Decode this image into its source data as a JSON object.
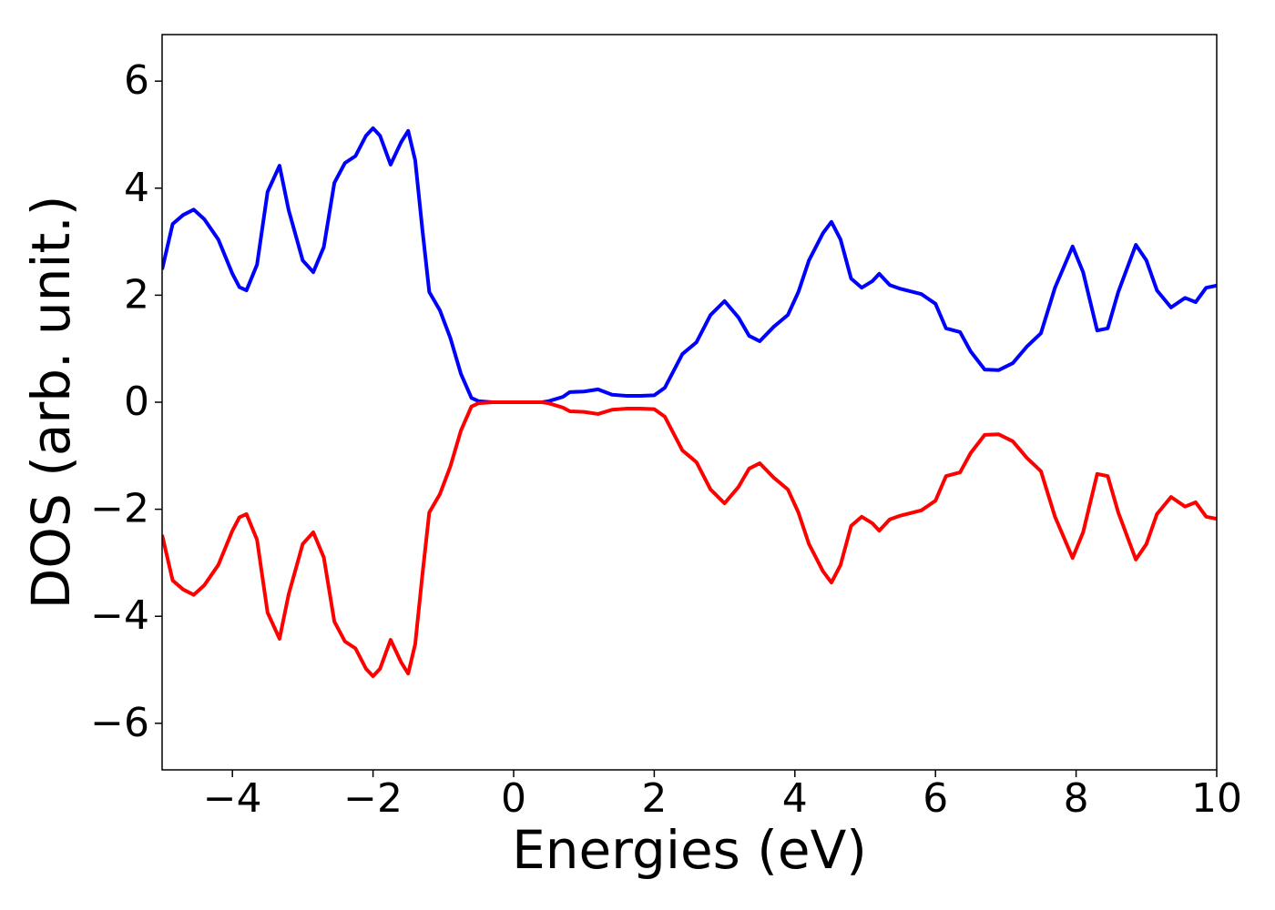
{
  "chart_data": {
    "type": "line",
    "x_label": "Energies (eV)",
    "y_label": "DOS (arb. unit.)",
    "x": [
      -5,
      -4.85,
      -4.7,
      -4.55,
      -4.4,
      -4.2,
      -4.0,
      -3.9,
      -3.8,
      -3.65,
      -3.5,
      -3.33,
      -3.2,
      -3.0,
      -2.85,
      -2.7,
      -2.55,
      -2.4,
      -2.25,
      -2.1,
      -2.0,
      -1.9,
      -1.75,
      -1.6,
      -1.5,
      -1.4,
      -1.3,
      -1.2,
      -1.05,
      -0.9,
      -0.75,
      -0.6,
      -0.5,
      -0.3,
      0,
      0.2,
      0.4,
      0.5,
      0.7,
      0.8,
      1.0,
      1.2,
      1.4,
      1.6,
      1.8,
      2.0,
      2.15,
      2.4,
      2.6,
      2.8,
      3.0,
      3.2,
      3.35,
      3.5,
      3.7,
      3.9,
      4.05,
      4.2,
      4.4,
      4.52,
      4.65,
      4.8,
      4.95,
      5.1,
      5.2,
      5.35,
      5.5,
      5.8,
      6.0,
      6.15,
      6.35,
      6.5,
      6.7,
      6.9,
      7.1,
      7.3,
      7.5,
      7.7,
      7.95,
      8.1,
      8.3,
      8.45,
      8.6,
      8.85,
      9.0,
      9.15,
      9.35,
      9.55,
      9.7,
      9.85,
      10
    ],
    "series": [
      {
        "color": "#0000ff",
        "values": [
          2.48,
          3.33,
          3.5,
          3.6,
          3.42,
          3.04,
          2.4,
          2.15,
          2.09,
          2.57,
          3.93,
          4.42,
          3.59,
          2.65,
          2.43,
          2.9,
          4.1,
          4.47,
          4.6,
          4.98,
          5.12,
          4.98,
          4.44,
          4.86,
          5.07,
          4.52,
          3.25,
          2.06,
          1.72,
          1.2,
          0.53,
          0.08,
          0.02,
          0,
          0,
          0,
          0,
          0.02,
          0.1,
          0.19,
          0.2,
          0.24,
          0.14,
          0.12,
          0.12,
          0.13,
          0.27,
          0.9,
          1.12,
          1.63,
          1.89,
          1.58,
          1.24,
          1.14,
          1.41,
          1.63,
          2.06,
          2.65,
          3.16,
          3.37,
          3.04,
          2.31,
          2.14,
          2.26,
          2.4,
          2.19,
          2.12,
          2.02,
          1.84,
          1.38,
          1.31,
          0.95,
          0.61,
          0.6,
          0.73,
          1.04,
          1.29,
          2.14,
          2.91,
          2.43,
          1.34,
          1.38,
          2.06,
          2.94,
          2.65,
          2.09,
          1.77,
          1.95,
          1.87,
          2.14,
          2.18
        ]
      },
      {
        "color": "#ff0000",
        "values": [
          -2.48,
          -3.33,
          -3.5,
          -3.6,
          -3.42,
          -3.04,
          -2.4,
          -2.15,
          -2.09,
          -2.57,
          -3.93,
          -4.42,
          -3.59,
          -2.65,
          -2.43,
          -2.9,
          -4.1,
          -4.47,
          -4.6,
          -4.98,
          -5.12,
          -4.98,
          -4.44,
          -4.86,
          -5.07,
          -4.52,
          -3.25,
          -2.06,
          -1.72,
          -1.2,
          -0.53,
          -0.08,
          -0.02,
          0,
          0,
          0,
          0,
          -0.02,
          -0.1,
          -0.17,
          -0.18,
          -0.22,
          -0.14,
          -0.12,
          -0.12,
          -0.13,
          -0.27,
          -0.9,
          -1.12,
          -1.63,
          -1.89,
          -1.58,
          -1.24,
          -1.14,
          -1.41,
          -1.63,
          -2.06,
          -2.65,
          -3.16,
          -3.37,
          -3.04,
          -2.31,
          -2.14,
          -2.26,
          -2.4,
          -2.19,
          -2.12,
          -2.02,
          -1.84,
          -1.38,
          -1.31,
          -0.95,
          -0.61,
          -0.6,
          -0.73,
          -1.04,
          -1.29,
          -2.14,
          -2.91,
          -2.43,
          -1.34,
          -1.38,
          -2.06,
          -2.94,
          -2.65,
          -2.09,
          -1.77,
          -1.95,
          -1.87,
          -2.14,
          -2.18
        ]
      }
    ],
    "xlim": [
      -5,
      10
    ],
    "ylim": [
      -6.87,
      6.87
    ],
    "xticks": [
      {
        "value": -4,
        "label": "−4"
      },
      {
        "value": -2,
        "label": "−2"
      },
      0,
      2,
      4,
      6,
      8,
      10
    ],
    "yticks": [
      {
        "value": -6,
        "label": "−6"
      },
      {
        "value": -4,
        "label": "−4"
      },
      {
        "value": -2,
        "label": "−2"
      },
      0,
      2,
      4,
      6
    ],
    "grid": false
  }
}
